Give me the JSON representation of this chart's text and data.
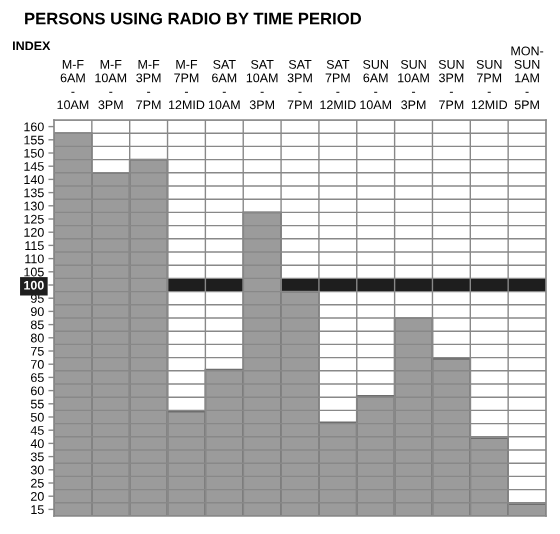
{
  "chart_data": {
    "type": "bar",
    "title": "PERSONS USING RADIO BY TIME PERIOD",
    "ylabel": "INDEX",
    "categories": [
      "M-F 6AM - 10AM",
      "M-F 10AM - 3PM",
      "M-F 3PM - 7PM",
      "M-F 7PM - 12MID",
      "SAT 6AM - 10AM",
      "SAT 10AM - 3PM",
      "SAT 3PM - 7PM",
      "SAT 7PM - 12MID",
      "SUN 6AM - 10AM",
      "SUN 10AM - 3PM",
      "SUN 3PM - 7PM",
      "SUN 7PM - 12MID",
      "MON-SUN 1AM - 5PM"
    ],
    "values": [
      157.5,
      142.5,
      147.5,
      52,
      68,
      127.5,
      97.5,
      48,
      58,
      87.5,
      72,
      42,
      17
    ],
    "color": "#9b9b9b",
    "ylim": [
      12.5,
      162.5
    ],
    "yticks": [
      15,
      20,
      25,
      30,
      35,
      40,
      45,
      50,
      55,
      60,
      65,
      70,
      75,
      80,
      85,
      90,
      95,
      100,
      105,
      110,
      115,
      120,
      125,
      130,
      135,
      140,
      145,
      150,
      155,
      160
    ],
    "bands": [
      {
        "axis": "y",
        "from": 97.5,
        "to": 102.5,
        "color": "#1e1e1e"
      }
    ],
    "grid": true
  }
}
